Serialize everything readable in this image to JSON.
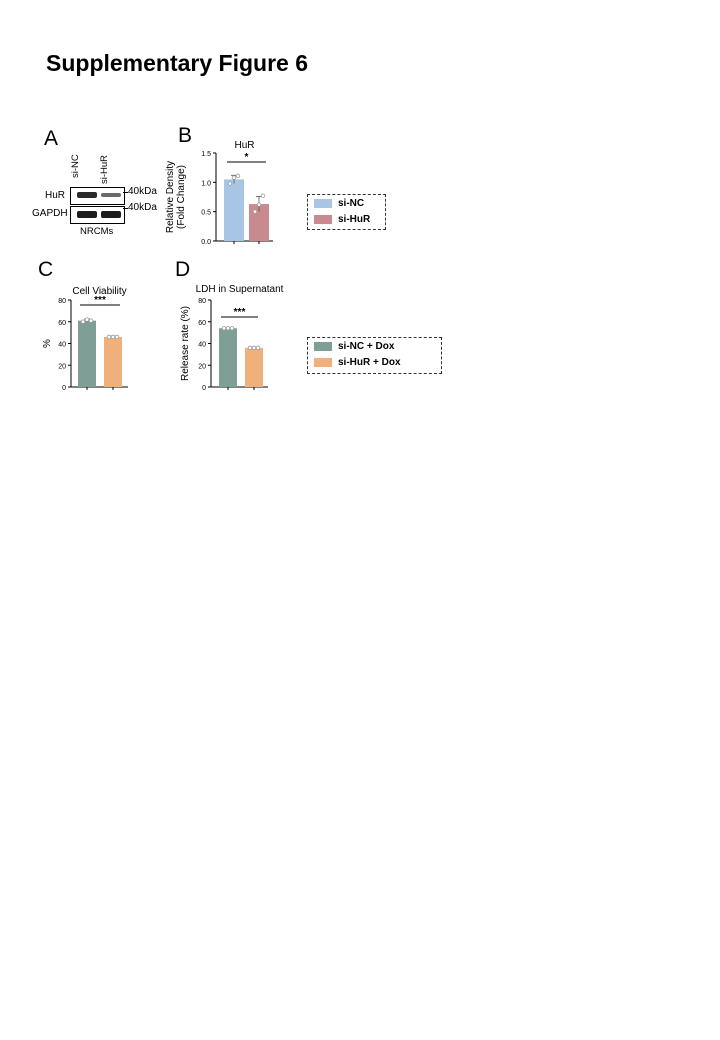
{
  "figure_title": "Supplementary Figure 6",
  "panels": {
    "a": "A",
    "b": "B",
    "c": "C",
    "d": "D"
  },
  "western_blot": {
    "lanes": [
      "si-NC",
      "si-HuR"
    ],
    "rows": [
      {
        "label": "HuR",
        "size": "40kDa"
      },
      {
        "label": "GAPDH",
        "size": "40kDa"
      }
    ],
    "cell_type": "NRCMs"
  },
  "legend_b": {
    "items": [
      {
        "label": "si-NC",
        "color": "#a9c5e5"
      },
      {
        "label": "si-HuR",
        "color": "#c98a8f"
      }
    ]
  },
  "legend_cd": {
    "items": [
      {
        "label": "si-NC + Dox",
        "color": "#7f9e95"
      },
      {
        "label": "si-HuR + Dox",
        "color": "#f0b07c"
      }
    ]
  },
  "chart_data": [
    {
      "id": "B",
      "type": "bar",
      "title": "HuR",
      "ylabel": "Relative Density\n(Fold Change)",
      "ylim": [
        0,
        1.5
      ],
      "yticks": [
        0.0,
        0.5,
        1.0,
        1.5
      ],
      "ytick_labels": [
        "0.0",
        "0.5",
        "1.0",
        "1.5"
      ],
      "categories": [
        "si-NC",
        "si-HuR"
      ],
      "values": [
        1.05,
        0.63
      ],
      "colors": [
        "#a9c5e5",
        "#c98a8f"
      ],
      "error": [
        0.07,
        0.13
      ],
      "points": [
        [
          0.98,
          1.08,
          1.11
        ],
        [
          0.5,
          0.62,
          0.77
        ]
      ],
      "significance": "*"
    },
    {
      "id": "C",
      "type": "bar",
      "title": "Cell Viability",
      "ylabel": "%",
      "ylim": [
        0,
        80
      ],
      "yticks": [
        0,
        20,
        40,
        60,
        80
      ],
      "ytick_labels": [
        "0",
        "20",
        "40",
        "60",
        "80"
      ],
      "categories": [
        "si-NC + Dox",
        "si-HuR + Dox"
      ],
      "values": [
        61,
        46
      ],
      "colors": [
        "#7f9e95",
        "#f0b07c"
      ],
      "error": [
        1.5,
        0.8
      ],
      "points": [
        [
          60,
          62,
          61
        ],
        [
          46,
          46,
          46
        ]
      ],
      "significance": "***"
    },
    {
      "id": "D",
      "type": "bar",
      "title": "LDH in Supernatant",
      "ylabel": "Release rate (%)",
      "ylim": [
        0,
        80
      ],
      "yticks": [
        0,
        20,
        40,
        60,
        80
      ],
      "ytick_labels": [
        "0",
        "20",
        "40",
        "60",
        "80"
      ],
      "categories": [
        "si-NC + Dox",
        "si-HuR + Dox"
      ],
      "values": [
        54,
        36
      ],
      "colors": [
        "#7f9e95",
        "#f0b07c"
      ],
      "error": [
        0.8,
        0.6
      ],
      "points": [
        [
          54,
          54,
          54
        ],
        [
          36,
          36,
          36
        ]
      ],
      "significance": "***"
    }
  ]
}
